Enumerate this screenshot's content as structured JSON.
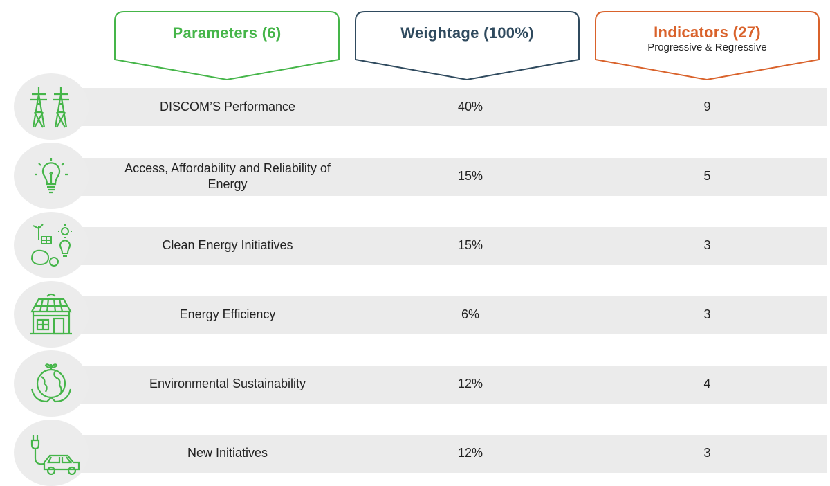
{
  "headers": {
    "parameters": {
      "title": "Parameters (6)",
      "color": "#45b549"
    },
    "weightage": {
      "title": "Weightage (100%)",
      "color": "#2f4a5e"
    },
    "indicators": {
      "title": "Indicators (27)",
      "subtitle": "Progressive & Regressive",
      "color": "#d9622b"
    }
  },
  "icon_color": "#45b549",
  "rows": [
    {
      "icon": "power-tower-icon",
      "parameter": "DISCOM’S Performance",
      "weightage": "40%",
      "indicators": "9"
    },
    {
      "icon": "light-bulb-icon",
      "parameter": "Access, Affordability and Reliability of Energy",
      "weightage": "15%",
      "indicators": "5"
    },
    {
      "icon": "clean-energy-icon",
      "parameter": "Clean Energy Initiatives",
      "weightage": "15%",
      "indicators": "3"
    },
    {
      "icon": "efficient-building-icon",
      "parameter": "Energy Efficiency",
      "weightage": "6%",
      "indicators": "3"
    },
    {
      "icon": "globe-hands-icon",
      "parameter": "Environmental Sustainability",
      "weightage": "12%",
      "indicators": "4"
    },
    {
      "icon": "electric-vehicle-icon",
      "parameter": "New Initiatives",
      "weightage": "12%",
      "indicators": "3"
    }
  ]
}
